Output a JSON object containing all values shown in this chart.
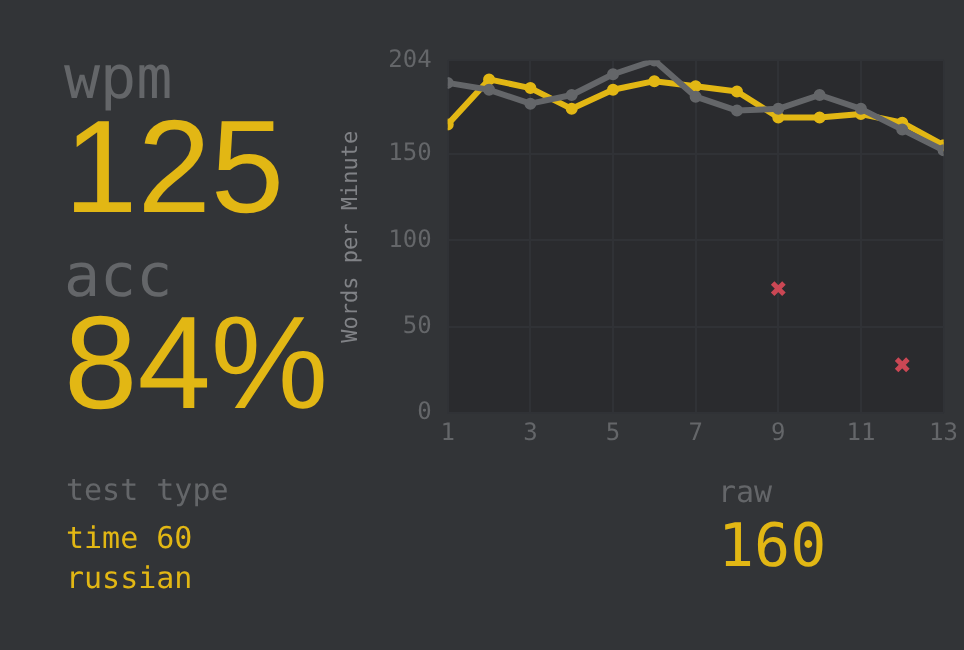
{
  "chart_data": {
    "type": "line",
    "ylabel": "Words per Minute",
    "x": [
      1,
      2,
      3,
      4,
      5,
      6,
      7,
      8,
      9,
      10,
      11,
      12,
      13
    ],
    "xlim": [
      1,
      13
    ],
    "xticks": [
      1,
      3,
      5,
      7,
      9,
      11,
      13
    ],
    "ylim": [
      0,
      204
    ],
    "yticks": [
      0,
      50,
      100,
      150,
      204
    ],
    "grid": true,
    "legend": false,
    "series": [
      {
        "type": "line",
        "color": "#646669",
        "marker": "circle",
        "values": [
          191,
          187,
          179,
          184,
          196,
          204,
          183,
          175,
          176,
          184,
          176,
          164,
          152
        ]
      },
      {
        "type": "line",
        "color": "#e2b714",
        "marker": "circle",
        "values": [
          167,
          193,
          188,
          176,
          187,
          192,
          189,
          186,
          171,
          171,
          173,
          168,
          155
        ]
      },
      {
        "type": "scatter",
        "color": "#ca4754",
        "marker": "cross",
        "x": [
          9,
          12
        ],
        "values": [
          72,
          28
        ]
      }
    ],
    "annotations": [
      "wpm",
      "125",
      "acc",
      "84%",
      "test type",
      "time 60",
      "russian",
      "raw",
      "160"
    ]
  }
}
